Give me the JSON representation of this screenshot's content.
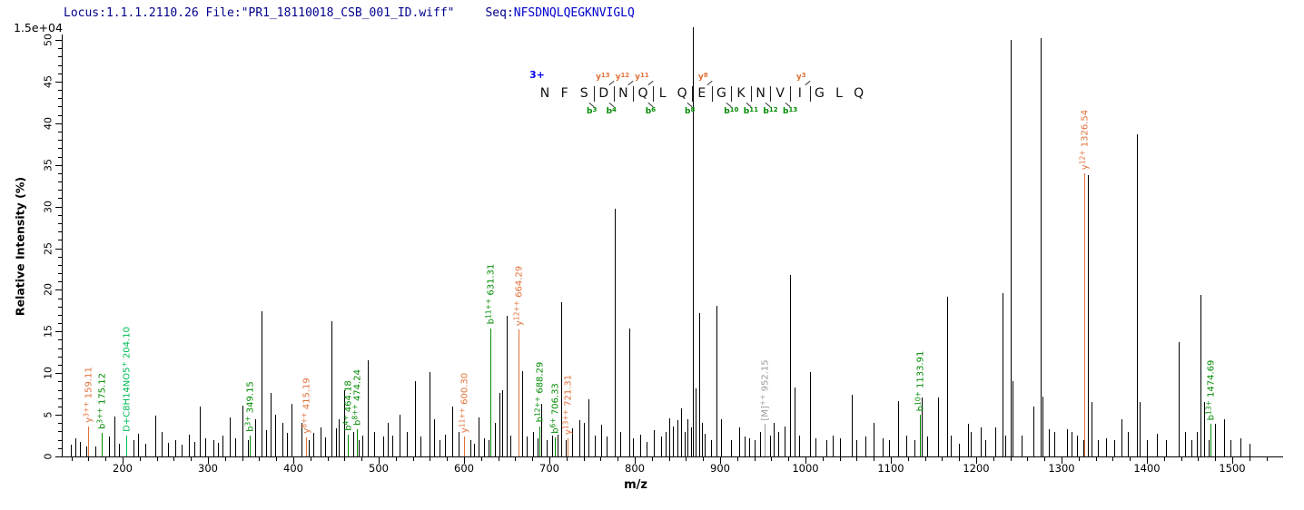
{
  "header": {
    "locus_file": "Locus:1.1.1.2110.26 File:\"PR1_18110018_CSB_001_ID.wiff\"",
    "seq_label": "Seq:",
    "seq_value": "NFSDNQLQEGKNVIGLQ"
  },
  "y_axis": {
    "title": "Relative  Intensity (%)",
    "scale_note": "1.5e+04",
    "ticks": [
      0,
      5,
      10,
      15,
      20,
      25,
      30,
      35,
      40,
      45,
      50
    ],
    "minor_step": 1,
    "max_pct": 50
  },
  "x_axis": {
    "title": "m/z",
    "ticks": [
      200,
      300,
      400,
      500,
      600,
      700,
      800,
      900,
      1000,
      1100,
      1200,
      1300,
      1400,
      1500
    ],
    "minor_step": 20,
    "range": [
      130,
      1545
    ]
  },
  "sequence_panel": {
    "charge": "3+",
    "residues": "NFSDNQLQEGKNVIGLQ",
    "marks": [
      {
        "after": 3,
        "b": "b3"
      },
      {
        "after": 4,
        "b": "b4",
        "y": "y13"
      },
      {
        "after": 5,
        "y": "y12"
      },
      {
        "after": 6,
        "b": "b6",
        "y": "y11"
      },
      {
        "after": 8,
        "b": "b8"
      },
      {
        "after": 9,
        "y": "y8"
      },
      {
        "after": 10,
        "b": "b10"
      },
      {
        "after": 11,
        "b": "b11"
      },
      {
        "after": 12,
        "b": "b12"
      },
      {
        "after": 13,
        "b": "b13"
      },
      {
        "after": 14,
        "y": "y3"
      }
    ]
  },
  "chart_data": {
    "type": "bar",
    "subtype": "msms-stick-spectrum",
    "xlabel": "m/z",
    "ylabel": "Relative  Intensity (%)",
    "xlim": [
      130,
      1545
    ],
    "ylim": [
      0,
      50
    ],
    "grid": false,
    "colors": {
      "b": "#008a00",
      "y": "#e0713a",
      "other": "#00bb55",
      "precursor": "#9b9b9b",
      "peak": "#000000"
    },
    "peaks": [
      [
        139,
        1.4
      ],
      [
        145,
        2.2
      ],
      [
        150,
        1.8
      ],
      [
        157,
        1.2
      ],
      [
        168,
        1.2
      ],
      [
        184,
        2.4
      ],
      [
        190,
        4.8
      ],
      [
        196,
        1.5
      ],
      [
        213,
        2.0
      ],
      [
        218,
        2.7
      ],
      [
        227,
        1.5
      ],
      [
        238,
        4.9
      ],
      [
        246,
        3.0
      ],
      [
        253,
        1.6
      ],
      [
        262,
        2.0
      ],
      [
        269,
        1.4
      ],
      [
        278,
        2.6
      ],
      [
        284,
        1.8
      ],
      [
        290,
        6.0
      ],
      [
        297,
        2.2
      ],
      [
        306,
        2.0
      ],
      [
        312,
        1.6
      ],
      [
        317,
        2.5
      ],
      [
        326,
        4.7
      ],
      [
        332,
        2.2
      ],
      [
        340,
        6.1
      ],
      [
        347,
        2.0
      ],
      [
        355,
        4.5
      ],
      [
        363,
        17.4
      ],
      [
        368,
        3.2
      ],
      [
        373,
        7.6
      ],
      [
        379,
        5.0
      ],
      [
        387,
        4.0
      ],
      [
        393,
        2.8
      ],
      [
        398,
        6.3
      ],
      [
        409,
        4.0
      ],
      [
        418,
        2.0
      ],
      [
        423,
        2.8
      ],
      [
        432,
        3.5
      ],
      [
        437,
        2.3
      ],
      [
        445,
        16.2
      ],
      [
        450,
        3.4
      ],
      [
        453,
        4.5
      ],
      [
        459,
        8.0
      ],
      [
        470,
        3.0
      ],
      [
        477,
        2.0
      ],
      [
        481,
        2.5
      ],
      [
        487,
        11.5
      ],
      [
        495,
        3.0
      ],
      [
        505,
        2.4
      ],
      [
        511,
        4.0
      ],
      [
        516,
        2.5
      ],
      [
        524,
        5.0
      ],
      [
        533,
        3.0
      ],
      [
        543,
        9.0
      ],
      [
        549,
        2.4
      ],
      [
        559,
        10.1
      ],
      [
        565,
        4.5
      ],
      [
        571,
        2.0
      ],
      [
        578,
        2.6
      ],
      [
        586,
        6.0
      ],
      [
        594,
        3.0
      ],
      [
        607,
        2.0
      ],
      [
        612,
        1.5
      ],
      [
        617,
        4.7
      ],
      [
        623,
        2.2
      ],
      [
        629,
        2.0
      ],
      [
        636,
        4.0
      ],
      [
        641,
        7.6
      ],
      [
        645,
        8.0
      ],
      [
        650,
        16.9
      ],
      [
        654,
        2.5
      ],
      [
        668,
        10.2
      ],
      [
        673,
        2.4
      ],
      [
        681,
        3.0
      ],
      [
        686,
        2.2
      ],
      [
        690,
        6.3
      ],
      [
        697,
        2.0
      ],
      [
        703,
        2.5
      ],
      [
        709,
        2.6
      ],
      [
        714,
        18.5
      ],
      [
        719,
        2.0
      ],
      [
        727,
        3.4
      ],
      [
        735,
        4.4
      ],
      [
        740,
        4.0
      ],
      [
        746,
        6.9
      ],
      [
        753,
        2.5
      ],
      [
        761,
        3.8
      ],
      [
        767,
        2.4
      ],
      [
        777,
        29.7
      ],
      [
        783,
        3.0
      ],
      [
        794,
        15.4
      ],
      [
        798,
        2.2
      ],
      [
        806,
        2.6
      ],
      [
        814,
        1.8
      ],
      [
        822,
        3.2
      ],
      [
        831,
        2.4
      ],
      [
        836,
        3.0
      ],
      [
        840,
        4.6
      ],
      [
        845,
        3.6
      ],
      [
        850,
        4.4
      ],
      [
        854,
        5.8
      ],
      [
        858,
        3.0
      ],
      [
        862,
        4.5
      ],
      [
        866,
        3.5
      ],
      [
        868,
        51.5
      ],
      [
        871,
        8.2
      ],
      [
        875,
        17.2
      ],
      [
        879,
        4.0
      ],
      [
        882,
        2.7
      ],
      [
        889,
        2.0
      ],
      [
        896,
        18.1
      ],
      [
        901,
        4.5
      ],
      [
        913,
        2.0
      ],
      [
        922,
        3.5
      ],
      [
        929,
        2.4
      ],
      [
        934,
        2.2
      ],
      [
        940,
        2.0
      ],
      [
        947,
        3.0
      ],
      [
        958,
        2.5
      ],
      [
        963,
        4.0
      ],
      [
        968,
        3.0
      ],
      [
        975,
        3.6
      ],
      [
        982,
        21.8
      ],
      [
        987,
        8.3
      ],
      [
        993,
        2.5
      ],
      [
        1005,
        10.1
      ],
      [
        1012,
        2.2
      ],
      [
        1024,
        2.0
      ],
      [
        1032,
        2.5
      ],
      [
        1040,
        2.2
      ],
      [
        1054,
        7.4
      ],
      [
        1060,
        2.0
      ],
      [
        1070,
        2.4
      ],
      [
        1080,
        4.0
      ],
      [
        1090,
        2.2
      ],
      [
        1098,
        2.0
      ],
      [
        1108,
        6.6
      ],
      [
        1118,
        2.5
      ],
      [
        1128,
        2.0
      ],
      [
        1136,
        7.1
      ],
      [
        1142,
        2.4
      ],
      [
        1155,
        7.1
      ],
      [
        1166,
        19.2
      ],
      [
        1170,
        2.5
      ],
      [
        1180,
        1.5
      ],
      [
        1190,
        3.9
      ],
      [
        1194,
        3.0
      ],
      [
        1205,
        3.5
      ],
      [
        1211,
        2.0
      ],
      [
        1222,
        3.5
      ],
      [
        1231,
        19.6
      ],
      [
        1234,
        2.5
      ],
      [
        1240,
        50.0
      ],
      [
        1243,
        9.0
      ],
      [
        1253,
        2.5
      ],
      [
        1267,
        6.0
      ],
      [
        1275,
        50.2
      ],
      [
        1278,
        7.2
      ],
      [
        1285,
        3.3
      ],
      [
        1291,
        3.0
      ],
      [
        1306,
        3.3
      ],
      [
        1312,
        3.0
      ],
      [
        1318,
        2.5
      ],
      [
        1326,
        2.0
      ],
      [
        1331,
        33.8
      ],
      [
        1335,
        6.5
      ],
      [
        1342,
        2.0
      ],
      [
        1352,
        2.2
      ],
      [
        1362,
        2.0
      ],
      [
        1370,
        4.5
      ],
      [
        1378,
        3.0
      ],
      [
        1388,
        38.7
      ],
      [
        1391,
        6.5
      ],
      [
        1400,
        2.0
      ],
      [
        1412,
        2.7
      ],
      [
        1422,
        2.0
      ],
      [
        1437,
        13.7
      ],
      [
        1445,
        3.0
      ],
      [
        1452,
        2.0
      ],
      [
        1458,
        3.0
      ],
      [
        1463,
        19.4
      ],
      [
        1467,
        6.5
      ],
      [
        1472,
        2.0
      ],
      [
        1480,
        3.9
      ],
      [
        1490,
        4.5
      ],
      [
        1498,
        2.0
      ],
      [
        1510,
        2.2
      ],
      [
        1520,
        1.5
      ]
    ],
    "annotations": [
      {
        "ion": "y",
        "sup": "3++",
        "mass": "159.11",
        "mz": 159.11,
        "h": 3.6,
        "type": "y"
      },
      {
        "ion": "b",
        "sup": "3++",
        "mass": "175.12",
        "mz": 175.12,
        "h": 2.8,
        "type": "b"
      },
      {
        "ion": "D+C8H14NO5",
        "sup": "+",
        "mass": "204.10",
        "mz": 204.1,
        "h": 2.5,
        "type": "other"
      },
      {
        "ion": "b",
        "sup": "3+",
        "mass": "349.15",
        "mz": 349.15,
        "h": 2.5,
        "type": "b"
      },
      {
        "ion": "y",
        "sup": "8++",
        "mass": "415.19",
        "mz": 415.19,
        "h": 2.3,
        "type": "y"
      },
      {
        "ion": "b",
        "sup": "4+",
        "mass": "464.18",
        "mz": 464.18,
        "h": 2.6,
        "type": "b"
      },
      {
        "ion": "b",
        "sup": "8++",
        "mass": "474.24",
        "mz": 474.24,
        "h": 3.3,
        "type": "b"
      },
      {
        "ion": "y",
        "sup": "11++",
        "mass": "600.30",
        "mz": 600.3,
        "h": 2.4,
        "type": "y"
      },
      {
        "ion": "b",
        "sup": "11++",
        "mass": "631.31",
        "mz": 631.31,
        "h": 15.4,
        "type": "b"
      },
      {
        "ion": "y",
        "sup": "12++",
        "mass": "664.29",
        "mz": 664.29,
        "h": 15.3,
        "type": "y"
      },
      {
        "ion": "b",
        "sup": "12++",
        "mass": "688.29",
        "mz": 688.29,
        "h": 3.6,
        "type": "b"
      },
      {
        "ion": "b",
        "sup": "6+",
        "mass": "706.33",
        "mz": 706.33,
        "h": 2.3,
        "type": "b"
      },
      {
        "ion": "y",
        "sup": "13++",
        "mass": "721.31",
        "mz": 721.31,
        "h": 2.2,
        "type": "y"
      },
      {
        "ion": "[M]",
        "sup": "++",
        "mass": "952.15",
        "mz": 952.15,
        "h": 3.9,
        "type": "precursor"
      },
      {
        "ion": "b",
        "sup": "10+",
        "mass": "1133.91",
        "mz": 1133.91,
        "h": 5.0,
        "type": "b"
      },
      {
        "ion": "y",
        "sup": "12+",
        "mass": "1326.54",
        "mz": 1326.54,
        "h": 34.0,
        "type": "y"
      },
      {
        "ion": "b",
        "sup": "13+",
        "mass": "1474.69",
        "mz": 1474.69,
        "h": 3.9,
        "type": "b"
      }
    ]
  }
}
